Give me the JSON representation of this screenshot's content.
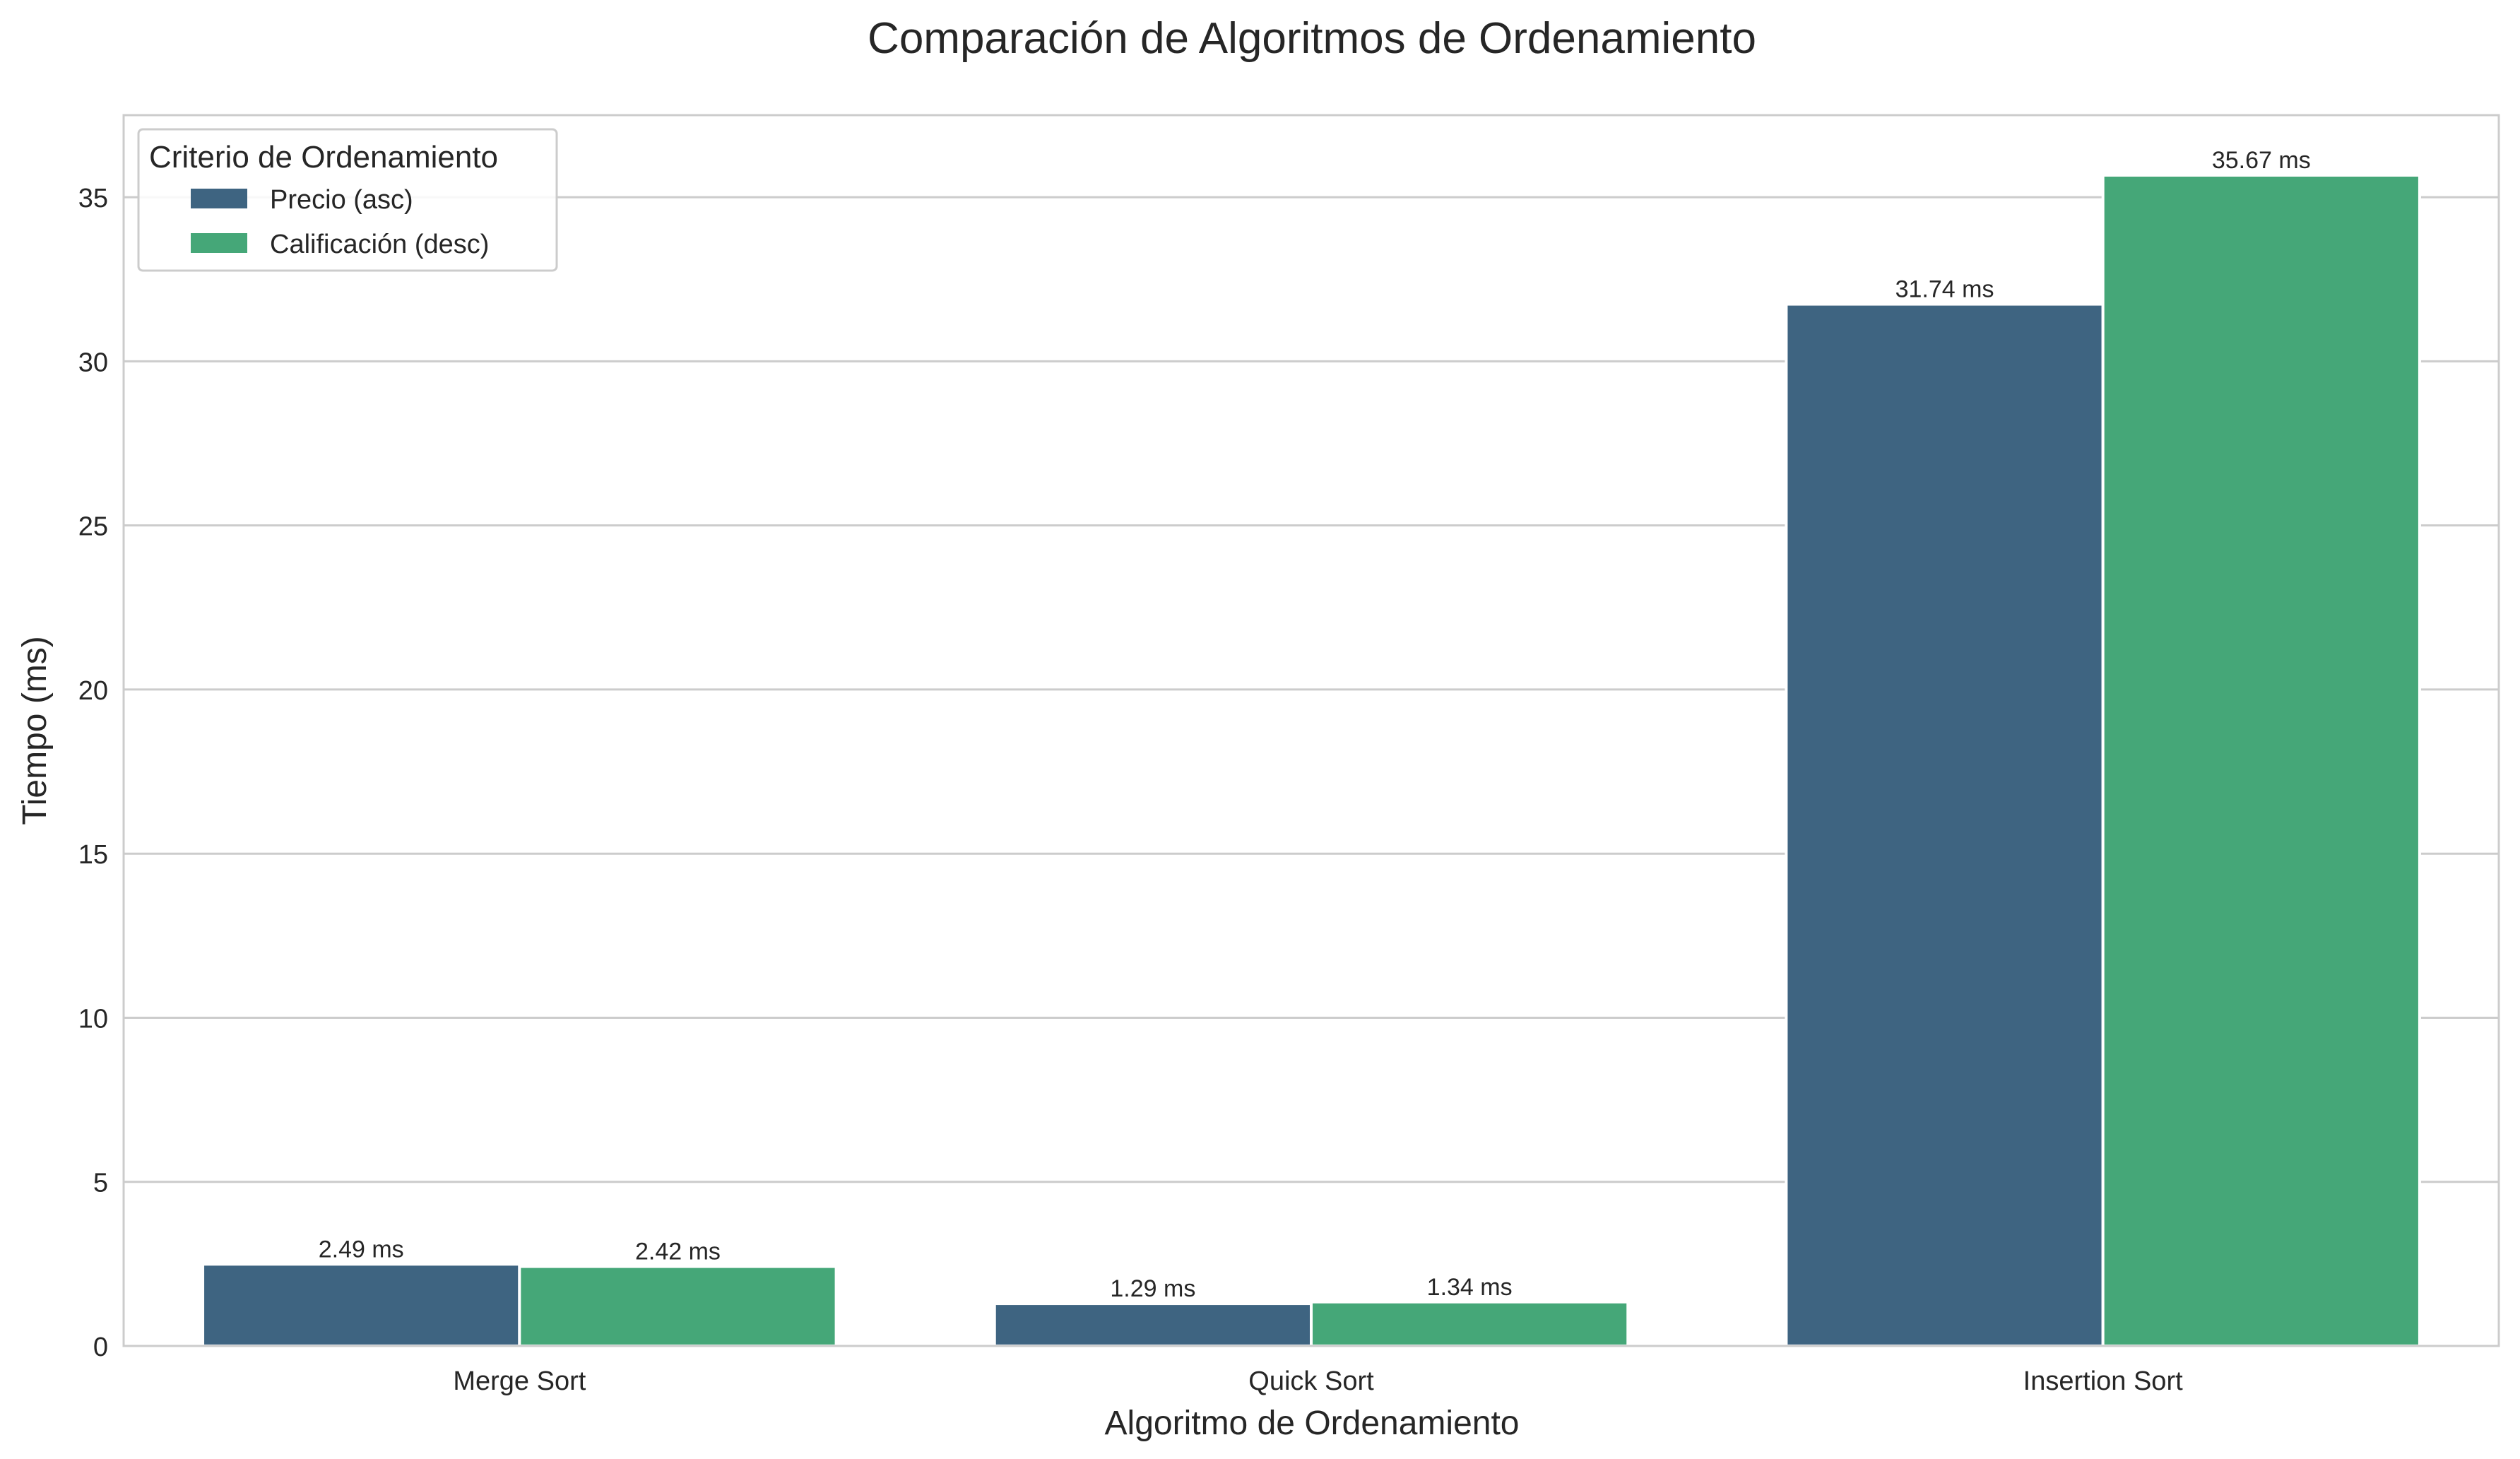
{
  "chart_data": {
    "type": "bar",
    "title": "Comparación de Algoritmos de Ordenamiento",
    "xlabel": "Algoritmo de Ordenamiento",
    "ylabel": "Tiempo (ms)",
    "categories": [
      "Merge Sort",
      "Quick Sort",
      "Insertion Sort"
    ],
    "series": [
      {
        "name": "Precio (asc)",
        "color": "#3e6481",
        "values": [
          2.49,
          1.29,
          31.74
        ],
        "labels": [
          "2.49 ms",
          "1.29 ms",
          "31.74 ms"
        ]
      },
      {
        "name": "Calificación (desc)",
        "color": "#45a778",
        "values": [
          2.42,
          1.34,
          35.67
        ],
        "labels": [
          "2.42 ms",
          "1.34 ms",
          "35.67 ms"
        ]
      }
    ],
    "ylim": [
      0,
      37.5
    ],
    "yticks": [
      0,
      5,
      10,
      15,
      20,
      25,
      30,
      35
    ],
    "grid": true,
    "legend": {
      "title": "Criterio de Ordenamiento",
      "placement": "top-left"
    },
    "colors": {
      "grid": "#cccccc",
      "axes_edge": "#cccccc",
      "text": "#262626"
    }
  }
}
